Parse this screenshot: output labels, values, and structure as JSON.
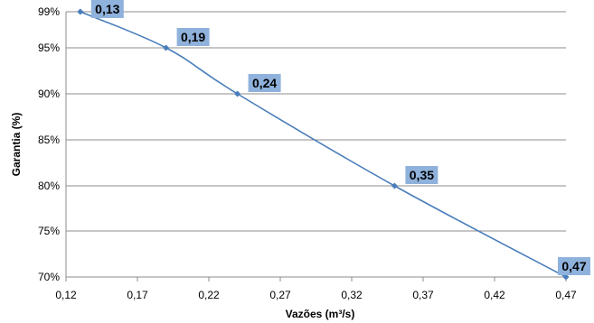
{
  "chart_data": {
    "type": "line",
    "xlabel": "Vazões (m³/s)",
    "ylabel": "Garantia (%)",
    "xlim": [
      0.12,
      0.47
    ],
    "ylim": [
      70,
      99
    ],
    "x_ticks": [
      "0,12",
      "0,17",
      "0,22",
      "0,27",
      "0,32",
      "0,37",
      "0,42",
      "0,47"
    ],
    "x_tick_values": [
      0.12,
      0.17,
      0.22,
      0.27,
      0.32,
      0.37,
      0.42,
      0.47
    ],
    "y_ticks": [
      "99%",
      "95%",
      "90%",
      "85%",
      "80%",
      "75%",
      "70%"
    ],
    "y_tick_values": [
      99,
      95,
      90,
      85,
      80,
      75,
      70
    ],
    "grid": "horizontal",
    "legend": "none",
    "line_color": "#4a7ebb",
    "label_bg_color": "#8fb2dc",
    "series": [
      {
        "x": [
          0.13,
          0.19,
          0.24,
          0.35,
          0.47
        ],
        "y": [
          99,
          95,
          90,
          80,
          70
        ],
        "labels": [
          "0,13",
          "0,19",
          "0,24",
          "0,35",
          "0,47"
        ]
      }
    ]
  }
}
